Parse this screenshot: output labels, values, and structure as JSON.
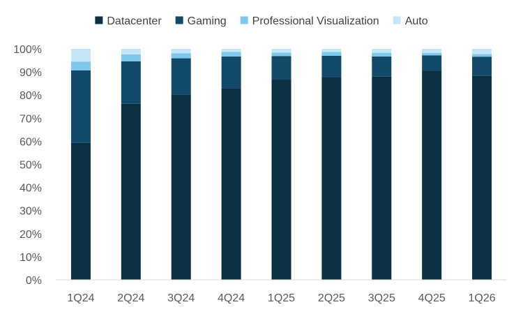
{
  "chart_data": {
    "type": "bar",
    "stacked": true,
    "normalized": true,
    "categories": [
      "1Q24",
      "2Q24",
      "3Q24",
      "4Q24",
      "1Q25",
      "2Q25",
      "3Q25",
      "4Q25",
      "1Q26"
    ],
    "series": [
      {
        "name": "Datacenter",
        "color": "#0b3044",
        "values": [
          59.3,
          76.2,
          80.3,
          83.0,
          86.7,
          87.8,
          88.0,
          90.6,
          88.3
        ]
      },
      {
        "name": "Gaming",
        "color": "#124a69",
        "values": [
          31.4,
          18.4,
          15.6,
          13.7,
          10.2,
          9.2,
          8.7,
          6.6,
          8.3
        ]
      },
      {
        "name": "Professional Visualization",
        "color": "#7ec8ec",
        "values": [
          3.8,
          3.0,
          2.2,
          2.0,
          1.5,
          1.7,
          1.6,
          1.1,
          1.2
        ]
      },
      {
        "name": "Auto",
        "color": "#c5e6f6",
        "values": [
          5.5,
          2.4,
          1.9,
          1.3,
          1.6,
          1.3,
          1.7,
          1.7,
          2.2
        ]
      }
    ],
    "y_ticks": [
      "0%",
      "10%",
      "20%",
      "30%",
      "40%",
      "50%",
      "60%",
      "70%",
      "80%",
      "90%",
      "100%"
    ],
    "ylim": [
      0,
      100
    ],
    "grid": false,
    "legend": "top-center"
  }
}
